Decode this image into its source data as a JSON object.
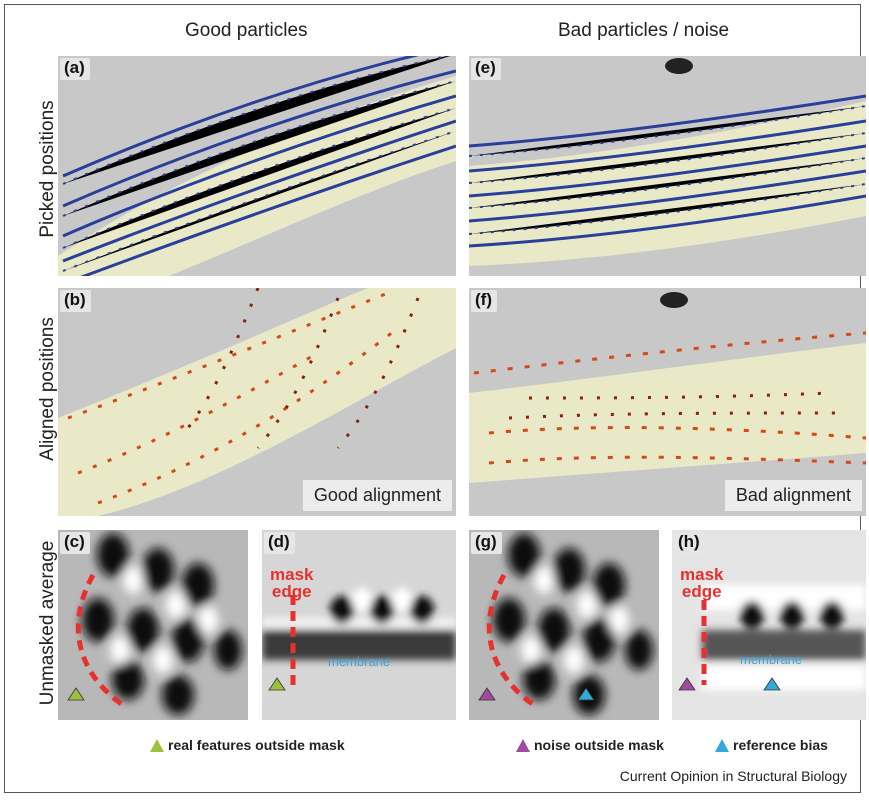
{
  "columns": {
    "left_title": "Good particles",
    "right_title": "Bad particles / noise"
  },
  "rows": {
    "picked": "Picked positions",
    "aligned": "Aligned positions",
    "unmasked": "Unmasked average"
  },
  "panels": {
    "a": "(a)",
    "b": "(b)",
    "c": "(c)",
    "d": "(d)",
    "e": "(e)",
    "f": "(f)",
    "g": "(g)",
    "h": "(h)"
  },
  "alignment": {
    "good": "Good alignment",
    "bad": "Bad alignment"
  },
  "annotations": {
    "mask_edge_line1": "mask",
    "mask_edge_line2": "edge",
    "membrane": "membrane"
  },
  "legend": {
    "real_features": "real features outside mask",
    "noise": "noise outside mask",
    "reference_bias": "reference bias"
  },
  "colors": {
    "real_features": "#9dc13c",
    "noise": "#a04b9d",
    "reference_bias": "#33a9d8",
    "mask_edge": "#e8312f",
    "picked_arrows": "#2a3f9a",
    "aligned_arrows": "#d4481a"
  },
  "footer": "Current Opinion in Structural Biology"
}
